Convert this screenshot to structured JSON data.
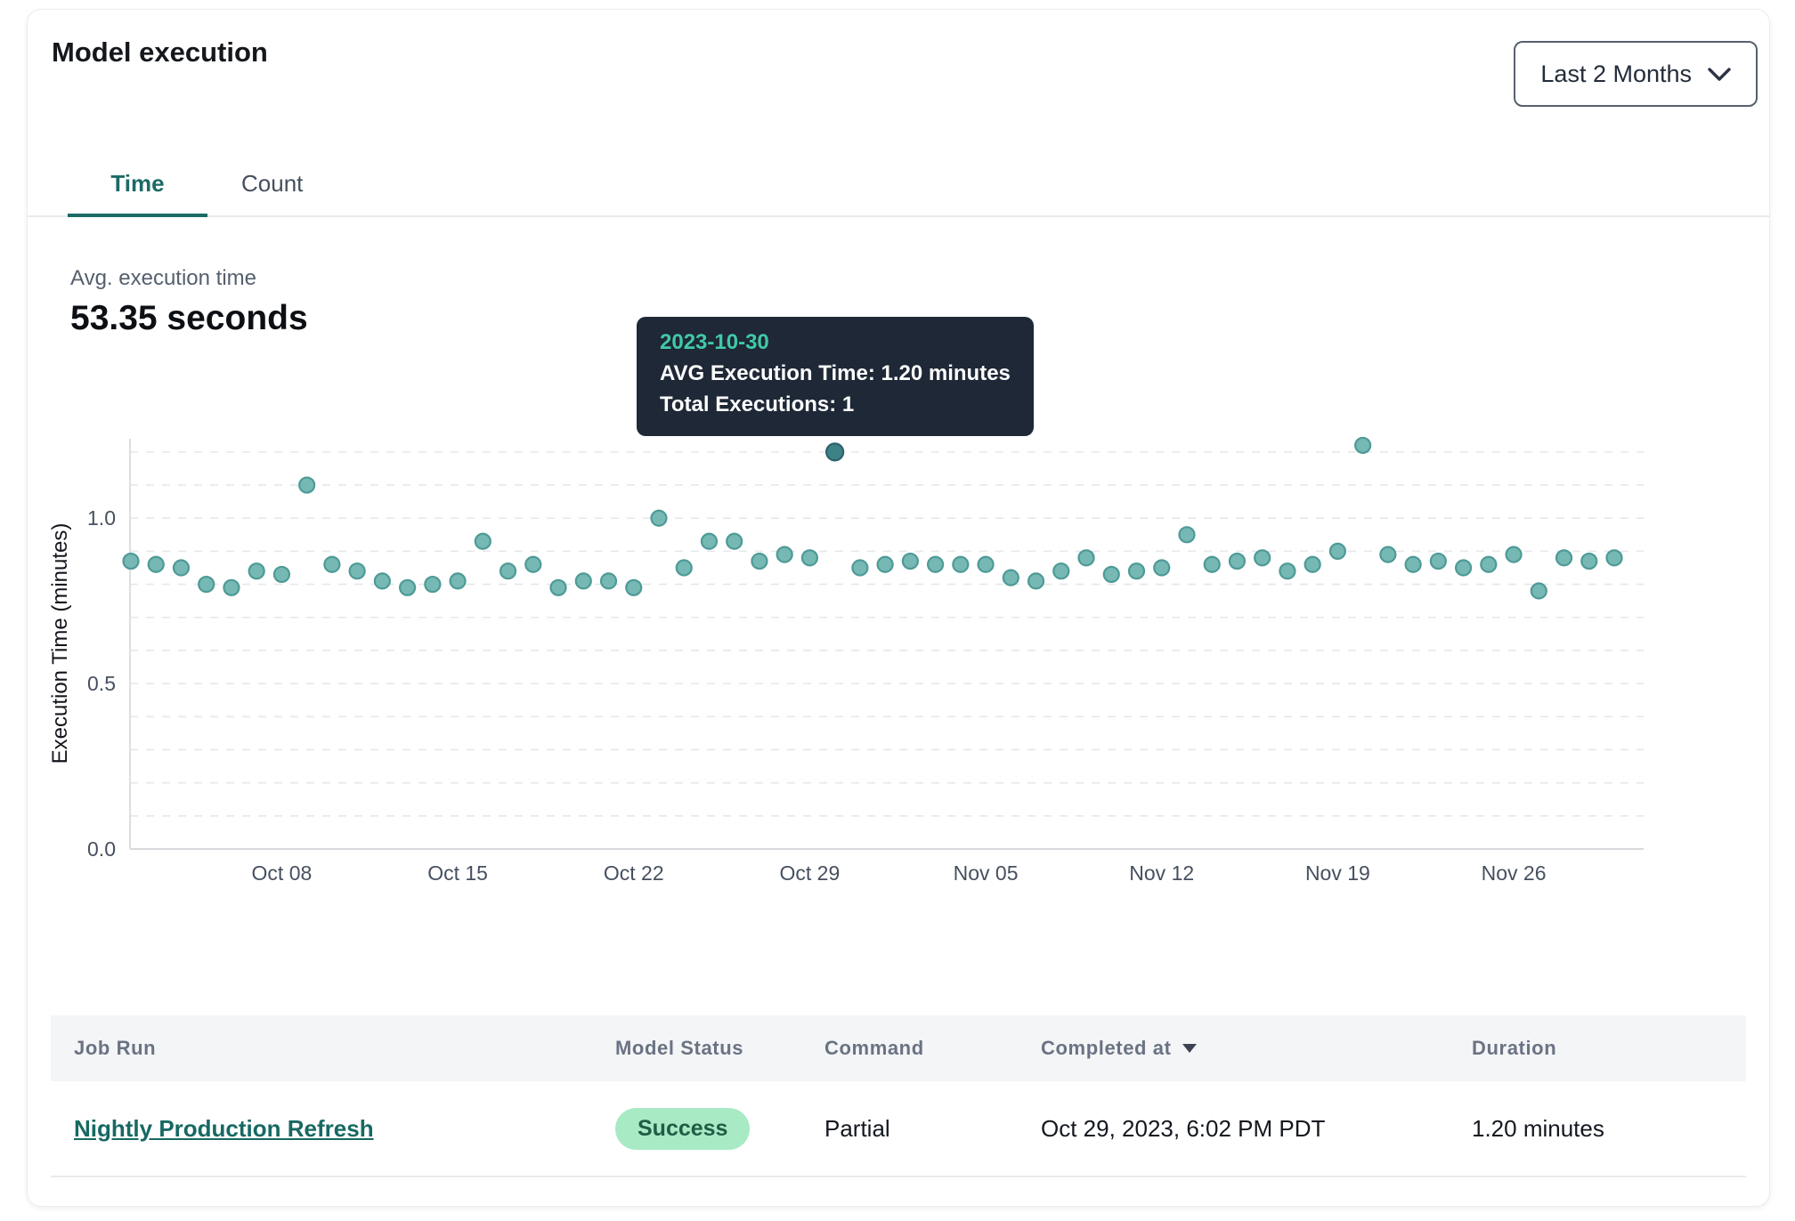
{
  "header": {
    "title": "Model execution",
    "range_selector": {
      "label": "Last 2 Months"
    }
  },
  "tabs": [
    {
      "label": "Time",
      "active": true
    },
    {
      "label": "Count",
      "active": false
    }
  ],
  "summary": {
    "label": "Avg. execution time",
    "value": "53.35 seconds"
  },
  "tooltip": {
    "date": "2023-10-30",
    "avg_line": "AVG Execution Time: 1.20 minutes",
    "total_line": "Total Executions: 1"
  },
  "chart_data": {
    "type": "scatter",
    "ylabel": "Execution Time (minutes)",
    "xlabel": "",
    "ylim": [
      0,
      1.24
    ],
    "grid": true,
    "legend": false,
    "yticks": [
      {
        "value": 0,
        "label": "0.0"
      },
      {
        "value": 0.5,
        "label": "0.5"
      },
      {
        "value": 1,
        "label": "1.0"
      }
    ],
    "xticks": [
      {
        "date": "2023-10-08",
        "label": "Oct 08"
      },
      {
        "date": "2023-10-15",
        "label": "Oct 15"
      },
      {
        "date": "2023-10-22",
        "label": "Oct 22"
      },
      {
        "date": "2023-10-29",
        "label": "Oct 29"
      },
      {
        "date": "2023-11-05",
        "label": "Nov 05"
      },
      {
        "date": "2023-11-12",
        "label": "Nov 12"
      },
      {
        "date": "2023-11-19",
        "label": "Nov 19"
      },
      {
        "date": "2023-11-26",
        "label": "Nov 26"
      }
    ],
    "x": [
      "2023-10-02",
      "2023-10-03",
      "2023-10-04",
      "2023-10-05",
      "2023-10-06",
      "2023-10-07",
      "2023-10-08",
      "2023-10-09",
      "2023-10-10",
      "2023-10-11",
      "2023-10-12",
      "2023-10-13",
      "2023-10-14",
      "2023-10-15",
      "2023-10-16",
      "2023-10-17",
      "2023-10-18",
      "2023-10-19",
      "2023-10-20",
      "2023-10-21",
      "2023-10-22",
      "2023-10-23",
      "2023-10-24",
      "2023-10-25",
      "2023-10-26",
      "2023-10-27",
      "2023-10-28",
      "2023-10-29",
      "2023-10-30",
      "2023-10-31",
      "2023-11-01",
      "2023-11-02",
      "2023-11-03",
      "2023-11-04",
      "2023-11-05",
      "2023-11-06",
      "2023-11-07",
      "2023-11-08",
      "2023-11-09",
      "2023-11-10",
      "2023-11-11",
      "2023-11-12",
      "2023-11-13",
      "2023-11-14",
      "2023-11-15",
      "2023-11-16",
      "2023-11-17",
      "2023-11-18",
      "2023-11-19",
      "2023-11-20",
      "2023-11-21",
      "2023-11-22",
      "2023-11-23",
      "2023-11-24",
      "2023-11-25",
      "2023-11-26",
      "2023-11-27",
      "2023-11-28",
      "2023-11-29",
      "2023-11-30"
    ],
    "values": [
      0.87,
      0.86,
      0.85,
      0.8,
      0.79,
      0.84,
      0.83,
      1.1,
      0.86,
      0.84,
      0.81,
      0.79,
      0.8,
      0.81,
      0.93,
      0.84,
      0.86,
      0.79,
      0.81,
      0.81,
      0.79,
      1.0,
      0.85,
      0.93,
      0.93,
      0.87,
      0.89,
      0.88,
      1.2,
      0.85,
      0.86,
      0.87,
      0.86,
      0.86,
      0.86,
      0.82,
      0.81,
      0.84,
      0.88,
      0.83,
      0.84,
      0.85,
      0.95,
      0.86,
      0.87,
      0.88,
      0.84,
      0.86,
      0.9,
      1.22,
      0.89,
      0.86,
      0.87,
      0.85,
      0.86,
      0.89,
      0.78,
      0.88,
      0.87,
      0.88
    ],
    "highlight": {
      "date": "2023-10-30",
      "value": 1.2,
      "total_executions": 1
    }
  },
  "table": {
    "columns": [
      {
        "label": "Job Run"
      },
      {
        "label": "Model Status"
      },
      {
        "label": "Command"
      },
      {
        "label": "Completed at",
        "sorted": "desc"
      },
      {
        "label": "Duration"
      }
    ],
    "rows": [
      {
        "job_run": "Nightly Production Refresh",
        "model_status": "Success",
        "command": "Partial",
        "completed_at": "Oct 29, 2023, 6:02 PM PDT",
        "duration": "1.20 minutes"
      }
    ]
  },
  "colors": {
    "accent": "#1c6b66",
    "point_fill": "#76b8b4",
    "point_stroke": "#4e9a96",
    "highlight_fill": "#3e8287",
    "highlight_stroke": "#2c636a",
    "grid": "#e6e7ea",
    "axis": "#d8dade",
    "tooltip_bg": "#1e2836",
    "tooltip_date": "#41c9a7",
    "badge_bg": "#a7eac4",
    "badge_text": "#215c45"
  }
}
